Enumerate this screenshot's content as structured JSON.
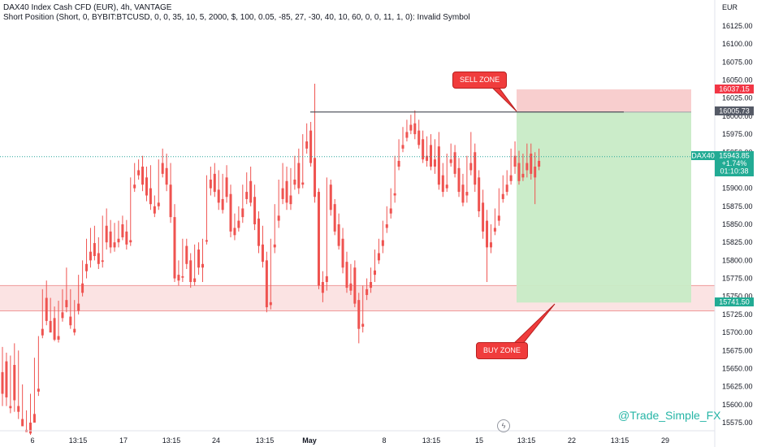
{
  "header": {
    "symbol_title": "DAX40 Index Cash CFD (EUR), 4h, VANTAGE",
    "indicator_line": "Short Position (Short, 0, BYBIT:BTCUSD, 0, 0, 35, 10, 5, 2000, $, 100, 0.05, -85, 27, -30, 40, 10, 60, 0, 0, 11, 1, 0): Invalid Symbol"
  },
  "price_axis": {
    "currency": "EUR",
    "ticks": [
      "16125.00",
      "16100.00",
      "16075.00",
      "16050.00",
      "16025.00",
      "16000.00",
      "15975.00",
      "15950.00",
      "15925.00",
      "15900.00",
      "15875.00",
      "15850.00",
      "15825.00",
      "15800.00",
      "15775.00",
      "15750.00",
      "15725.00",
      "15700.00",
      "15675.00",
      "15650.00",
      "15625.00",
      "15600.00",
      "15575.00"
    ]
  },
  "time_axis": {
    "ticks": [
      "6",
      "13:15",
      "17",
      "13:15",
      "24",
      "13:15",
      "May",
      "8",
      "13:15",
      "15",
      "13:15",
      "22",
      "13:15",
      "29"
    ]
  },
  "labels": {
    "stop_price": "16037.15",
    "entry_price": "16005.73",
    "target_price": "15741.50",
    "symbol_tag": "DAX40",
    "last_price": "15943.85",
    "change_pct": "+1.74%",
    "countdown": "01:10:38"
  },
  "annotations": {
    "sell_zone": "SELL ZONE",
    "buy_zone": "BUY ZONE",
    "watermark": "@Trade_Simple_FX"
  },
  "colors": {
    "up": "#26a69a",
    "down": "#ef5350",
    "stop_zone": "#f7c5c5",
    "target_zone": "#c8ebc6",
    "support_zone": "#fadcdc",
    "last_price_line": "#26a69a",
    "callout": "#f03c3c"
  },
  "chart_data": {
    "type": "candlestick",
    "symbol": "DAX40",
    "timeframe": "4h",
    "ylim": [
      15565,
      16150
    ],
    "last_price": 15943.85,
    "position": {
      "type": "short",
      "entry": 16005.73,
      "stop": 16037.15,
      "target": 15741.5
    },
    "support_zone": [
      15730,
      15765
    ],
    "resistance_level": 16005.73,
    "candles": [
      [
        15645,
        15680,
        15615,
        15598
      ],
      [
        15660,
        15672,
        15610,
        15598
      ],
      [
        15598,
        15668,
        15595,
        15588
      ],
      [
        15655,
        15685,
        15606,
        15590
      ],
      [
        15598,
        15675,
        15590,
        15580
      ],
      [
        15580,
        15628,
        15570,
        15570
      ],
      [
        15565,
        15592,
        15562,
        15562
      ],
      [
        15575,
        15615,
        15560,
        15558
      ],
      [
        15587,
        15665,
        15575,
        15575
      ],
      [
        15622,
        15695,
        15618,
        15612
      ],
      [
        15705,
        15760,
        15696,
        15692
      ],
      [
        15748,
        15772,
        15716,
        15710
      ],
      [
        15716,
        15748,
        15700,
        15700
      ],
      [
        15720,
        15736,
        15690,
        15688
      ],
      [
        15695,
        15744,
        15690,
        15686
      ],
      [
        15728,
        15760,
        15720,
        15715
      ],
      [
        15745,
        15790,
        15735,
        15728
      ],
      [
        15722,
        15760,
        15710,
        15705
      ],
      [
        15705,
        15745,
        15700,
        15696
      ],
      [
        15740,
        15780,
        15730,
        15725
      ],
      [
        15768,
        15800,
        15755,
        15750
      ],
      [
        15795,
        15830,
        15785,
        15775
      ],
      [
        15812,
        15845,
        15800,
        15790
      ],
      [
        15824,
        15848,
        15806,
        15800
      ],
      [
        15810,
        15832,
        15795,
        15788
      ],
      [
        15800,
        15862,
        15798,
        15790
      ],
      [
        15848,
        15872,
        15825,
        15815
      ],
      [
        15840,
        15856,
        15818,
        15810
      ],
      [
        15825,
        15852,
        15818,
        15812
      ],
      [
        15830,
        15855,
        15825,
        15818
      ],
      [
        15850,
        15862,
        15832,
        15828
      ],
      [
        15840,
        15856,
        15822,
        15815
      ],
      [
        15828,
        15915,
        15825,
        15820
      ],
      [
        15905,
        15935,
        15900,
        15895
      ],
      [
        15925,
        15940,
        15918,
        15912
      ],
      [
        15930,
        15945,
        15905,
        15896
      ],
      [
        15915,
        15930,
        15890,
        15882
      ],
      [
        15900,
        15932,
        15878,
        15870
      ],
      [
        15875,
        15890,
        15865,
        15860
      ],
      [
        15880,
        15940,
        15875,
        15870
      ],
      [
        15935,
        15955,
        15920,
        15915
      ],
      [
        15928,
        15948,
        15905,
        15896
      ],
      [
        15905,
        15935,
        15860,
        15852
      ],
      [
        15860,
        15878,
        15775,
        15770
      ],
      [
        15780,
        15800,
        15772,
        15765
      ],
      [
        15778,
        15830,
        15776,
        15770
      ],
      [
        15820,
        15830,
        15795,
        15788
      ],
      [
        15800,
        15810,
        15770,
        15762
      ],
      [
        15775,
        15822,
        15770,
        15765
      ],
      [
        15815,
        15825,
        15790,
        15780
      ],
      [
        15795,
        15830,
        15790,
        15770
      ],
      [
        15828,
        15918,
        15826,
        15822
      ],
      [
        15912,
        15930,
        15900,
        15890
      ],
      [
        15920,
        15935,
        15895,
        15888
      ],
      [
        15898,
        15925,
        15880,
        15870
      ],
      [
        15885,
        15920,
        15870,
        15865
      ],
      [
        15915,
        15932,
        15888,
        15880
      ],
      [
        15892,
        15905,
        15840,
        15832
      ],
      [
        15845,
        15865,
        15835,
        15828
      ],
      [
        15855,
        15875,
        15845,
        15840
      ],
      [
        15872,
        15905,
        15860,
        15852
      ],
      [
        15895,
        15922,
        15885,
        15878
      ],
      [
        15910,
        15930,
        15880,
        15875
      ],
      [
        15888,
        15905,
        15850,
        15842
      ],
      [
        15858,
        15868,
        15820,
        15810
      ],
      [
        15822,
        15848,
        15798,
        15790
      ],
      [
        15800,
        15812,
        15735,
        15728
      ],
      [
        15742,
        15830,
        15738,
        15732
      ],
      [
        15822,
        15878,
        15818,
        15810
      ],
      [
        15862,
        15912,
        15855,
        15845
      ],
      [
        15900,
        15935,
        15885,
        15878
      ],
      [
        15910,
        15930,
        15880,
        15870
      ],
      [
        15890,
        15928,
        15878,
        15870
      ],
      [
        15912,
        15945,
        15905,
        15898
      ],
      [
        15935,
        15955,
        15900,
        15892
      ],
      [
        15908,
        15975,
        15905,
        15900
      ],
      [
        15965,
        15990,
        15955,
        15948
      ],
      [
        15980,
        15992,
        15935,
        15930
      ],
      [
        15942,
        16045,
        15888,
        15880
      ],
      [
        15895,
        15900,
        15765,
        15760
      ],
      [
        15770,
        15785,
        15755,
        15742
      ],
      [
        15778,
        15915,
        15770,
        15758
      ],
      [
        15905,
        15912,
        15870,
        15862
      ],
      [
        15878,
        15885,
        15840,
        15835
      ],
      [
        15850,
        15865,
        15820,
        15815
      ],
      [
        15830,
        15845,
        15790,
        15782
      ],
      [
        15798,
        15812,
        15762,
        15755
      ],
      [
        15768,
        15795,
        15758,
        15752
      ],
      [
        15790,
        15800,
        15740,
        15735
      ],
      [
        15745,
        15755,
        15705,
        15685
      ],
      [
        15712,
        15765,
        15708,
        15700
      ],
      [
        15760,
        15775,
        15752,
        15745
      ],
      [
        15770,
        15790,
        15762,
        15755
      ],
      [
        15786,
        15815,
        15780,
        15770
      ],
      [
        15810,
        15830,
        15800,
        15795
      ],
      [
        15828,
        15855,
        15820,
        15810
      ],
      [
        15850,
        15875,
        15845,
        15838
      ],
      [
        15872,
        15900,
        15865,
        15858
      ],
      [
        15893,
        15945,
        15890,
        15880
      ],
      [
        15938,
        15968,
        15930,
        15925
      ],
      [
        15960,
        15985,
        15955,
        15950
      ],
      [
        15978,
        15995,
        15970,
        15965
      ],
      [
        15988,
        16002,
        15980,
        15975
      ],
      [
        15990,
        16008,
        15975,
        15968
      ],
      [
        15980,
        15995,
        15960,
        15955
      ],
      [
        15968,
        15980,
        15940,
        15935
      ],
      [
        15945,
        15972,
        15938,
        15930
      ],
      [
        15960,
        15975,
        15930,
        15925
      ],
      [
        15940,
        15968,
        15930,
        15920
      ],
      [
        15958,
        15978,
        15905,
        15898
      ],
      [
        15918,
        15935,
        15895,
        15888
      ],
      [
        15905,
        15948,
        15900,
        15895
      ],
      [
        15940,
        15962,
        15935,
        15930
      ],
      [
        15950,
        15960,
        15920,
        15915
      ],
      [
        15928,
        15942,
        15895,
        15888
      ],
      [
        15905,
        15920,
        15880,
        15875
      ],
      [
        15895,
        15945,
        15890,
        15880
      ],
      [
        15935,
        15978,
        15925,
        15918
      ],
      [
        15950,
        15962,
        15905,
        15895
      ],
      [
        15915,
        15925,
        15868,
        15860
      ],
      [
        15880,
        15898,
        15840,
        15830
      ],
      [
        15855,
        15870,
        15818,
        15770
      ],
      [
        15825,
        15850,
        15818,
        15810
      ],
      [
        15845,
        15872,
        15840,
        15835
      ],
      [
        15862,
        15900,
        15855,
        15848
      ],
      [
        15892,
        15918,
        15885,
        15880
      ],
      [
        15905,
        15925,
        15895,
        15890
      ],
      [
        15918,
        15955,
        15910,
        15905
      ],
      [
        15945,
        15965,
        15930,
        15920
      ],
      [
        15935,
        15952,
        15910,
        15905
      ],
      [
        15920,
        15948,
        15915,
        15910
      ],
      [
        15935,
        15962,
        15925,
        15915
      ],
      [
        15948,
        15962,
        15920,
        15912
      ],
      [
        15930,
        15950,
        15915,
        15878
      ],
      [
        15938,
        15955,
        15930,
        15925
      ]
    ]
  }
}
